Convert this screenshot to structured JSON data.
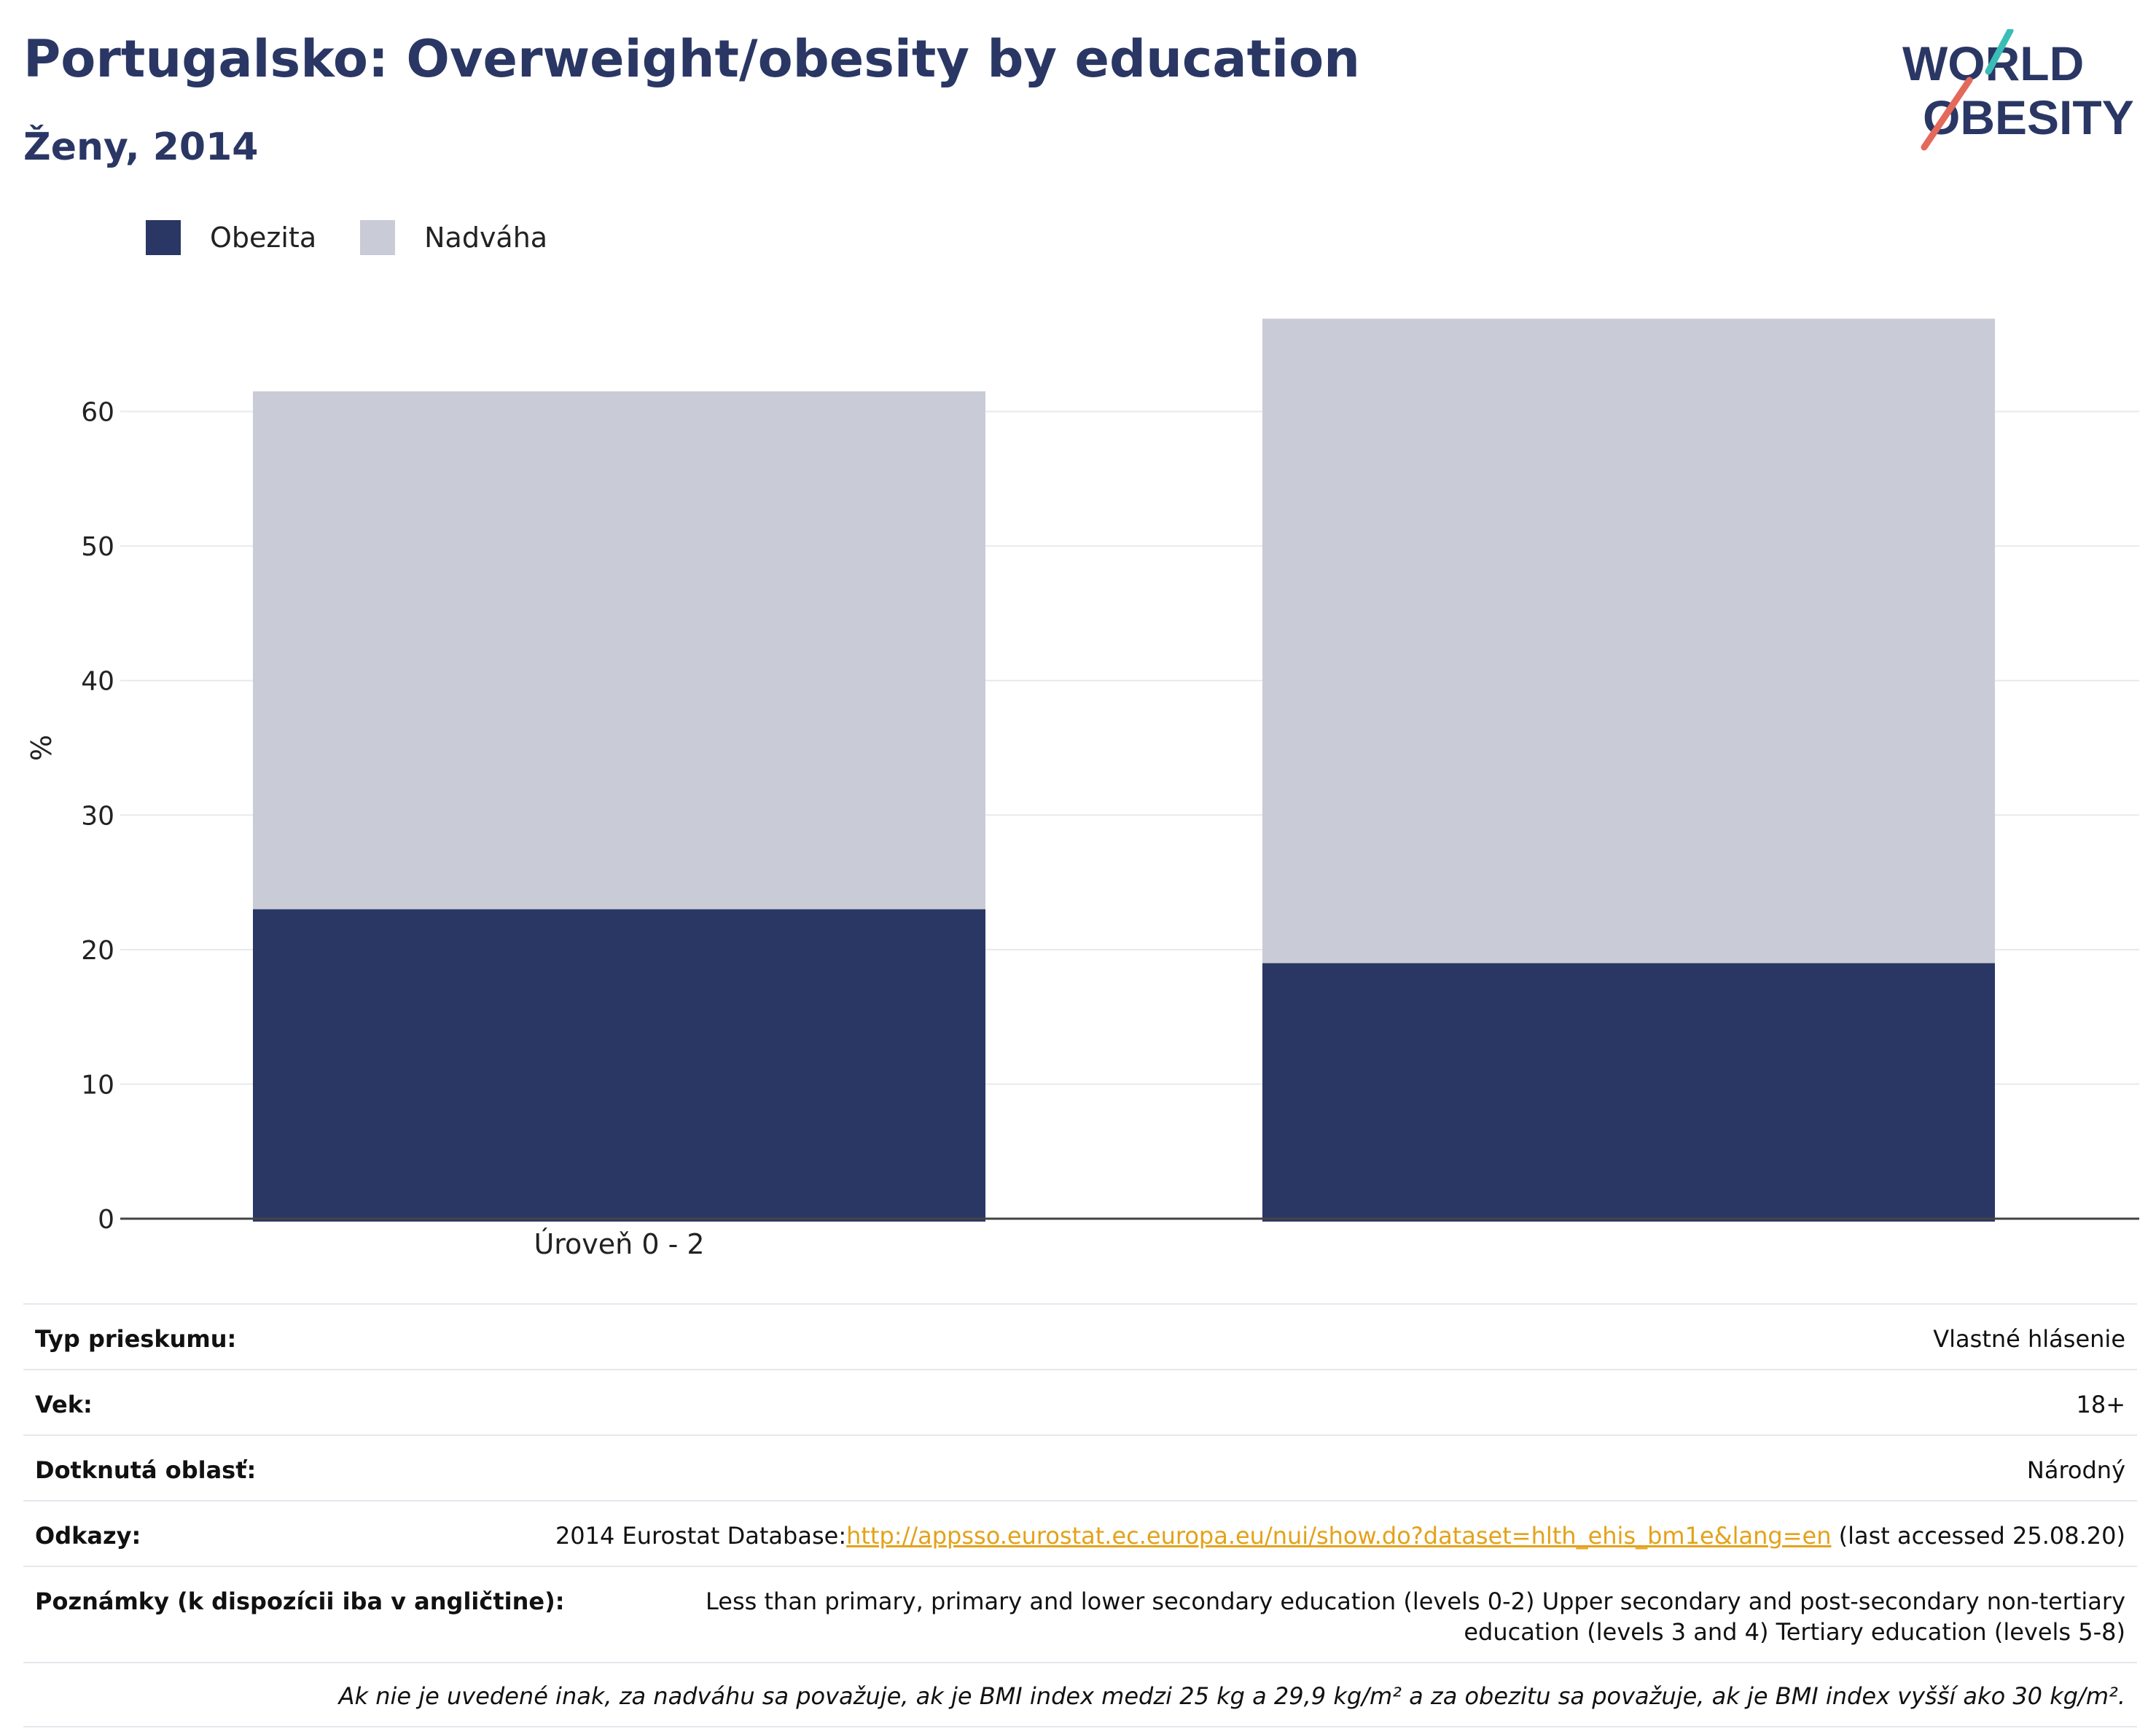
{
  "header": {
    "title": "Portugalsko: Overweight/obesity by education",
    "subtitle": "Ženy, 2014"
  },
  "logo": {
    "line1": "WORLD",
    "line2": "OBESITY",
    "accent_teal": "#3bbdb7",
    "accent_red": "#e4695a",
    "text_color": "#2a3764"
  },
  "legend": [
    {
      "label": "Obezita",
      "color": "#2a3764"
    },
    {
      "label": "Nadváha",
      "color": "#c9cbd7"
    }
  ],
  "chart_data": {
    "type": "bar",
    "stacked": true,
    "categories": [
      "Úroveň 0 - 2",
      ""
    ],
    "series": [
      {
        "name": "Obezita",
        "values": [
          23,
          19
        ],
        "color": "#2a3764"
      },
      {
        "name": "Nadváha",
        "values": [
          38.5,
          47.9
        ],
        "color": "#c9cbd7"
      }
    ],
    "ylabel": "%",
    "ylim": [
      0,
      70
    ],
    "yticks": [
      0,
      10,
      20,
      30,
      40,
      50,
      60
    ],
    "grid": true
  },
  "info": {
    "survey_type": {
      "label": "Typ prieskumu:",
      "value": "Vlastné hlásenie"
    },
    "age": {
      "label": "Vek:",
      "value": "18+"
    },
    "area": {
      "label": "Dotknutá oblasť:",
      "value": "Národný"
    },
    "refs": {
      "label": "Odkazy:",
      "prefix": "2014 Eurostat Database:",
      "link": "http://appsso.eurostat.ec.europa.eu/nui/show.do?dataset=hlth_ehis_bm1e&lang=en",
      "suffix": " (last accessed 25.08.20)"
    },
    "notes": {
      "label": "Poznámky (k dispozícii iba v angličtine):",
      "value": "Less than primary, primary and lower secondary education (levels 0-2) Upper secondary and post-secondary non-tertiary education (levels 3 and 4) Tertiary education (levels 5-8)"
    },
    "footnote": "Ak nie je uvedené inak, za nadváhu sa považuje, ak je BMI index medzi 25 kg a 29,9 kg/m² a za obezitu sa považuje, ak je BMI index vyšší ako 30 kg/m²."
  }
}
